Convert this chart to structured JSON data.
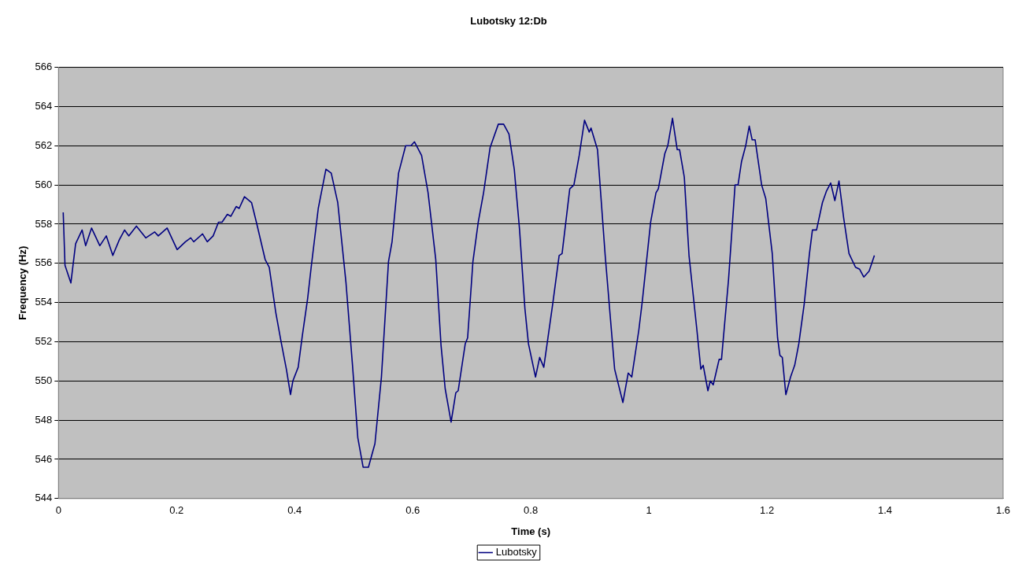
{
  "chart_data": {
    "type": "line",
    "title": "Lubotsky 12:Db",
    "xlabel": "Time (s)",
    "ylabel": "Frequency (Hz)",
    "xlim": [
      0,
      1.6
    ],
    "xticks": [
      0,
      0.2,
      0.4,
      0.6,
      0.8,
      1,
      1.2,
      1.4,
      1.6
    ],
    "ylim": [
      544,
      566
    ],
    "yticks": [
      544,
      546,
      548,
      550,
      552,
      554,
      556,
      558,
      560,
      562,
      564,
      566
    ],
    "grid": "y",
    "legend": "bottom",
    "marker": "none",
    "line_style": "solid",
    "series": [
      {
        "name": "Lubotsky",
        "color": "#000080",
        "x": [
          0.008,
          0.011,
          0.021,
          0.029,
          0.04,
          0.046,
          0.056,
          0.07,
          0.081,
          0.092,
          0.103,
          0.112,
          0.119,
          0.132,
          0.148,
          0.163,
          0.169,
          0.184,
          0.201,
          0.215,
          0.224,
          0.229,
          0.244,
          0.252,
          0.262,
          0.271,
          0.277,
          0.286,
          0.292,
          0.301,
          0.306,
          0.315,
          0.327,
          0.336,
          0.35,
          0.357,
          0.368,
          0.377,
          0.386,
          0.393,
          0.397,
          0.406,
          0.413,
          0.422,
          0.428,
          0.44,
          0.453,
          0.462,
          0.473,
          0.487,
          0.498,
          0.507,
          0.516,
          0.525,
          0.536,
          0.547,
          0.559,
          0.565,
          0.576,
          0.588,
          0.597,
          0.603,
          0.615,
          0.626,
          0.639,
          0.648,
          0.655,
          0.665,
          0.673,
          0.677,
          0.689,
          0.693,
          0.702,
          0.711,
          0.72,
          0.731,
          0.745,
          0.754,
          0.763,
          0.772,
          0.781,
          0.79,
          0.796,
          0.808,
          0.815,
          0.822,
          0.837,
          0.848,
          0.853,
          0.866,
          0.873,
          0.882,
          0.891,
          0.899,
          0.902,
          0.913,
          0.926,
          0.942,
          0.956,
          0.965,
          0.971,
          0.983,
          0.989,
          1.003,
          1.012,
          1.016,
          1.027,
          1.032,
          1.04,
          1.048,
          1.052,
          1.06,
          1.068,
          1.081,
          1.088,
          1.092,
          1.1,
          1.104,
          1.109,
          1.119,
          1.123,
          1.135,
          1.146,
          1.151,
          1.157,
          1.164,
          1.17,
          1.175,
          1.18,
          1.191,
          1.198,
          1.209,
          1.218,
          1.222,
          1.226,
          1.232,
          1.24,
          1.247,
          1.254,
          1.263,
          1.272,
          1.277,
          1.284,
          1.294,
          1.301,
          1.308,
          1.315,
          1.322,
          1.33,
          1.339,
          1.35,
          1.357,
          1.364,
          1.373,
          1.382
        ],
        "values": [
          558.6,
          555.9,
          555.0,
          557.0,
          557.7,
          556.9,
          557.8,
          556.9,
          557.4,
          556.4,
          557.2,
          557.7,
          557.4,
          557.9,
          557.3,
          557.6,
          557.4,
          557.8,
          556.7,
          557.1,
          557.3,
          557.1,
          557.5,
          557.1,
          557.4,
          558.1,
          558.1,
          558.5,
          558.4,
          558.9,
          558.8,
          559.4,
          559.1,
          558.0,
          556.2,
          555.8,
          553.5,
          552.0,
          550.6,
          549.3,
          550.0,
          550.7,
          552.3,
          554.2,
          555.8,
          558.8,
          560.8,
          560.6,
          559.1,
          555.0,
          550.8,
          547.1,
          545.6,
          545.6,
          546.8,
          550.2,
          556.1,
          557.1,
          560.6,
          562.0,
          562.0,
          562.2,
          561.5,
          559.6,
          556.2,
          551.8,
          549.6,
          547.9,
          549.4,
          549.5,
          551.9,
          552.2,
          556.1,
          558.1,
          559.6,
          561.9,
          563.1,
          563.1,
          562.6,
          560.8,
          557.7,
          553.7,
          551.9,
          550.2,
          551.2,
          550.7,
          553.9,
          556.4,
          556.5,
          559.8,
          560.0,
          561.5,
          563.3,
          562.7,
          562.9,
          561.8,
          556.4,
          550.6,
          548.9,
          550.4,
          550.2,
          552.6,
          554.1,
          558.1,
          559.6,
          559.8,
          561.6,
          562.0,
          563.4,
          561.8,
          561.8,
          560.4,
          556.4,
          552.7,
          550.6,
          550.8,
          549.5,
          550.0,
          549.8,
          551.1,
          551.1,
          555.2,
          560.0,
          560.0,
          561.2,
          562.0,
          563.0,
          562.3,
          562.3,
          560.0,
          559.3,
          556.5,
          552.2,
          551.3,
          551.2,
          549.3,
          550.2,
          550.8,
          551.9,
          553.9,
          556.5,
          557.7,
          557.7,
          559.1,
          559.7,
          560.1,
          559.2,
          560.2,
          558.3,
          556.5,
          555.8,
          555.7,
          555.3,
          555.6,
          556.4
        ]
      }
    ]
  }
}
